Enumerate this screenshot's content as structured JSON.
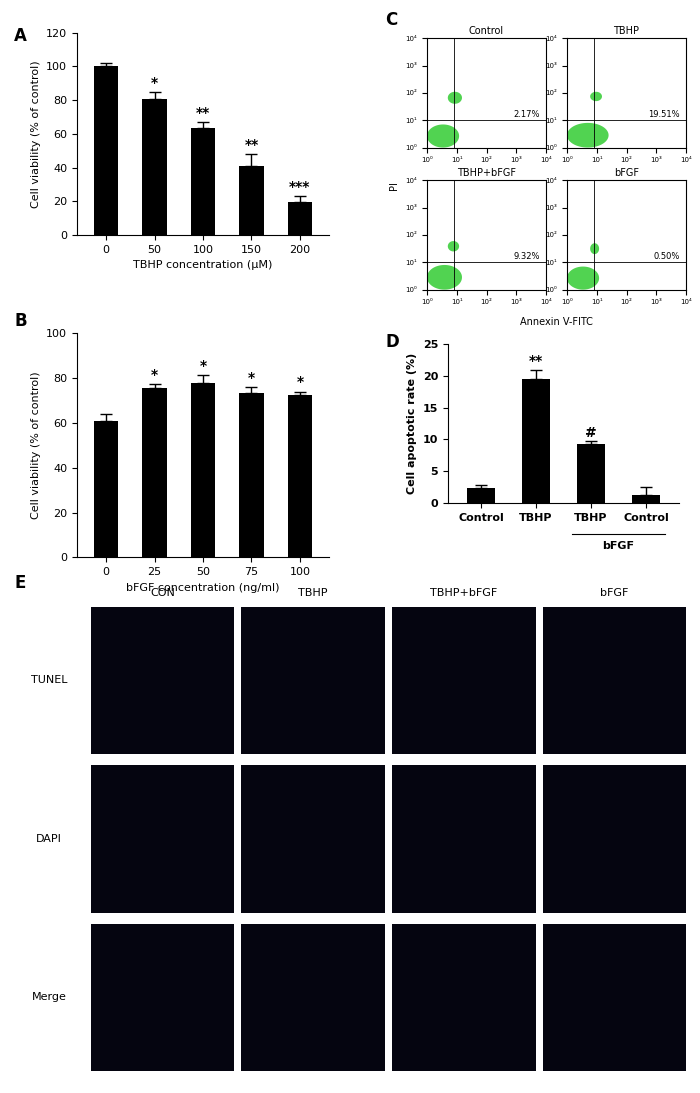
{
  "chart_data": [
    {
      "panel": "A",
      "type": "bar",
      "categories": [
        "0",
        "50",
        "100",
        "150",
        "200"
      ],
      "values": [
        100,
        81,
        63.5,
        41,
        19.5
      ],
      "errors": [
        2,
        4,
        3.5,
        7,
        3.5
      ],
      "annotations": [
        null,
        "*",
        "**",
        "**",
        "***"
      ],
      "x_label": "TBHP concentration (μM)",
      "y_label": "Cell viability (% of control)",
      "ylim": [
        0,
        120
      ],
      "yticks": [
        0,
        20,
        40,
        60,
        80,
        100,
        120
      ],
      "color": "#000000"
    },
    {
      "panel": "B",
      "type": "bar",
      "categories": [
        "0",
        "25",
        "50",
        "75",
        "100"
      ],
      "values": [
        61,
        75.5,
        78,
        73.5,
        72.5
      ],
      "errors": [
        3,
        2,
        3.5,
        2.5,
        1.5
      ],
      "annotations": [
        null,
        "*",
        "*",
        "*",
        "*"
      ],
      "x_label": "bFGF concentration (ng/ml)",
      "y_label": "Cell viability (% of control)",
      "ylim": [
        0,
        100
      ],
      "yticks": [
        0,
        20,
        40,
        60,
        80,
        100
      ],
      "color": "#000000"
    },
    {
      "panel": "C",
      "type": "scatter",
      "log": true,
      "x_label": "Annexin V-FITC",
      "y_label": "PI",
      "xlim": [
        1,
        10000
      ],
      "ylim": [
        1,
        10000
      ],
      "xticks": [
        {
          "value": 1,
          "label": "10⁰"
        },
        {
          "value": 10,
          "label": "10¹"
        },
        {
          "value": 100,
          "label": "10²"
        },
        {
          "value": 1000,
          "label": "10³"
        },
        {
          "value": 10000,
          "label": "10⁴"
        }
      ],
      "yticks": [
        {
          "value": 1,
          "label": "10⁰"
        },
        {
          "value": 10,
          "label": "10¹"
        },
        {
          "value": 100,
          "label": "10²"
        },
        {
          "value": 1000,
          "label": "10³"
        },
        {
          "value": 10000,
          "label": "10⁴"
        }
      ],
      "color": "#33cc33",
      "gate": {
        "x": 8,
        "y": 10
      },
      "plots": [
        {
          "title": "Control",
          "percent_label": "2.17%",
          "populations": [
            {
              "x": [
                1,
                12
              ],
              "y": [
                1,
                7
              ]
            },
            {
              "x": [
                5,
                15
              ],
              "y": [
                40,
                110
              ]
            }
          ]
        },
        {
          "title": "TBHP",
          "percent_label": "19.51%",
          "populations": [
            {
              "x": [
                1,
                25
              ],
              "y": [
                1,
                8
              ]
            },
            {
              "x": [
                6,
                15
              ],
              "y": [
                50,
                110
              ]
            }
          ]
        },
        {
          "title": "TBHP+bFGF",
          "percent_label": "9.32%",
          "populations": [
            {
              "x": [
                1,
                15
              ],
              "y": [
                1,
                8
              ]
            },
            {
              "x": [
                5,
                12
              ],
              "y": [
                25,
                60
              ]
            }
          ]
        },
        {
          "title": "bFGF",
          "percent_label": "0.50%",
          "populations": [
            {
              "x": [
                1,
                12
              ],
              "y": [
                1,
                7
              ]
            },
            {
              "x": [
                6,
                12
              ],
              "y": [
                20,
                50
              ]
            }
          ]
        }
      ]
    },
    {
      "panel": "D",
      "type": "bar",
      "categories": [
        "Control",
        "TBHP",
        "TBHP",
        "Control"
      ],
      "values": [
        2.3,
        19.5,
        9.2,
        1.2
      ],
      "errors": [
        0.5,
        1.5,
        0.5,
        1.3
      ],
      "annotations": [
        null,
        "**",
        "#",
        null
      ],
      "group_label": {
        "text": "bFGF",
        "categories": [
          2,
          3
        ]
      },
      "y_label": "Cell apoptotic rate (%)",
      "ylim": [
        0,
        25
      ],
      "yticks": [
        0,
        5,
        10,
        15,
        20,
        25
      ],
      "color": "#000000"
    },
    {
      "panel": "E",
      "type": "image_grid",
      "columns": [
        "CON",
        "TBHP",
        "TBHP+bFGF",
        "bFGF"
      ],
      "rows": [
        "TUNEL",
        "DAPI",
        "Merge"
      ]
    }
  ]
}
